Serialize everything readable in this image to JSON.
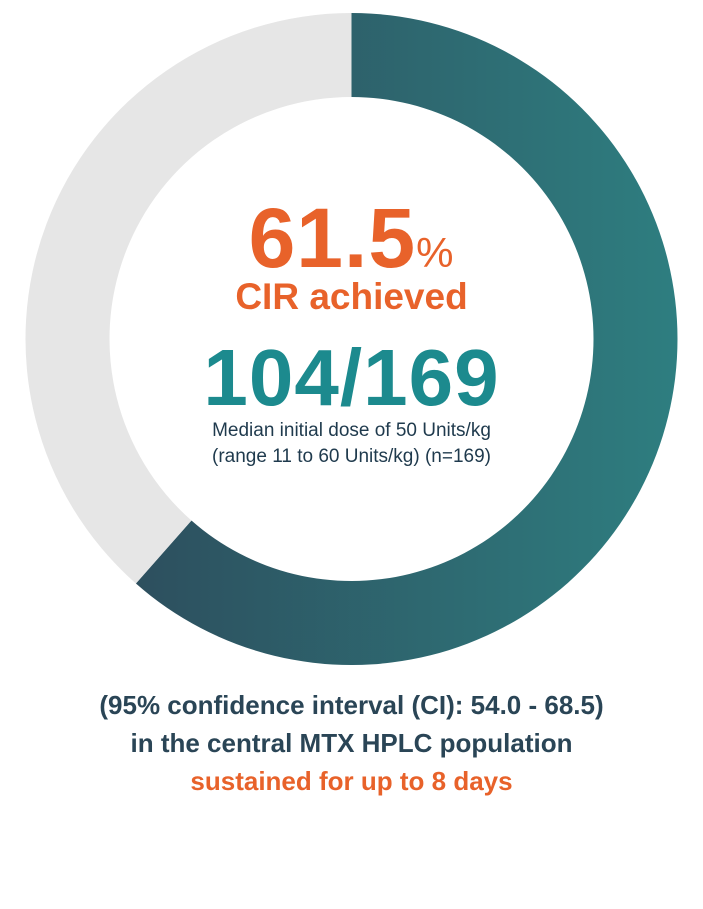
{
  "chart_data": {
    "type": "pie",
    "variant": "donut",
    "slices": [
      {
        "label": "CIR achieved",
        "value": 61.5,
        "color": "#2e7b7f"
      },
      {
        "label": "",
        "value": 38.5,
        "color": "#e6e6e6"
      }
    ],
    "colors": {
      "achieved_gradient_start": "#2d4f5e",
      "achieved_gradient_end": "#2e7e80",
      "remainder": "#e6e6e6"
    }
  },
  "center": {
    "percent_value": "61.5",
    "percent_symbol": "%",
    "headline": "CIR achieved",
    "fraction": "104/169",
    "note_line1": "Median initial dose of 50 Units/kg",
    "note_line2": "(range 11 to 60 Units/kg) (n=169)"
  },
  "footer": {
    "line1": "(95% confidence interval (CI): 54.0 - 68.5)",
    "line2": "in the central MTX HPLC population",
    "line3": "sustained for up to 8 days"
  }
}
